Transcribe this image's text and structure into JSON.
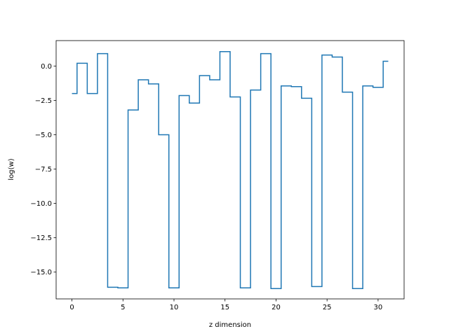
{
  "chart_data": {
    "type": "line",
    "drawstyle": "steps-mid",
    "title": "",
    "xlabel": "z dimension",
    "ylabel": "log(w)",
    "xlim": [
      -1.55,
      32.55
    ],
    "ylim": [
      -16.95,
      1.85
    ],
    "xticks": [
      0,
      5,
      10,
      15,
      20,
      25,
      30
    ],
    "xtick_labels": [
      "0",
      "5",
      "10",
      "15",
      "20",
      "25",
      "30"
    ],
    "yticks": [
      0.0,
      -2.5,
      -5.0,
      -7.5,
      -10.0,
      -12.5,
      -15.0
    ],
    "ytick_labels": [
      "0.0",
      "−2.5",
      "−5.0",
      "−7.5",
      "−10.0",
      "−12.5",
      "−15.0"
    ],
    "grid": false,
    "legend": false,
    "color": "#1f77b4",
    "series": [
      {
        "x": [
          0,
          1,
          2,
          3,
          4,
          5,
          6,
          7,
          8,
          9,
          10,
          11,
          12,
          13,
          14,
          15,
          16,
          17,
          18,
          19,
          20,
          21,
          22,
          23,
          24,
          25,
          26,
          27,
          28,
          29,
          30,
          31
        ],
        "y": [
          -2.0,
          0.2,
          -2.0,
          0.9,
          -16.1,
          -16.15,
          -3.2,
          -1.0,
          -1.3,
          -5.0,
          -16.15,
          -2.15,
          -2.7,
          -0.7,
          -1.0,
          1.05,
          -2.25,
          -16.15,
          -1.75,
          0.9,
          -16.2,
          -1.45,
          -1.5,
          -2.35,
          -16.05,
          0.8,
          0.65,
          -1.9,
          -16.2,
          -1.45,
          -1.55,
          0.35
        ]
      }
    ]
  }
}
